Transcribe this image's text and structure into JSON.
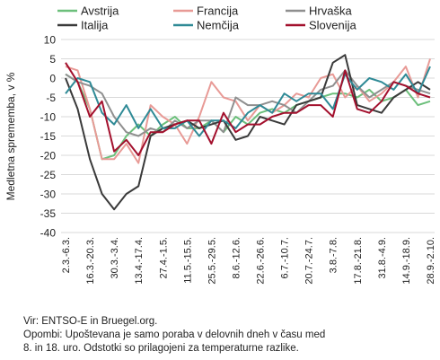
{
  "chart_data": {
    "type": "line",
    "ylabel": "Medletna sprememba, v %",
    "ylim": [
      -40,
      10
    ],
    "yticks": [
      -40,
      -35,
      -30,
      -25,
      -20,
      -15,
      -10,
      -5,
      0,
      5,
      10
    ],
    "grid": "horizontal",
    "legend_position": "top",
    "x_tick_labels": [
      "2.3.-6.3.",
      "16.3.-20.3.",
      "30.3.-3.4.",
      "13.4.-17.4.",
      "27.4.-1.5.",
      "11.5.-15.5.",
      "25.5.-29.5.",
      "8.6.-12.6.",
      "22.6.-26.6.",
      "6.7.-10.7.",
      "20.7.-24.7.",
      "3.8.-7.8.",
      "17.8.-21.8.",
      "31.8.-4.9.",
      "14.9.-18.9.",
      "28.9.-2.10."
    ],
    "x_points": 31,
    "series": [
      {
        "name": "Avstrija",
        "color": "#6cbf7b",
        "values": [
          1,
          -1,
          -8,
          -21,
          -20,
          -15,
          -12,
          -15,
          -12,
          -10,
          -13,
          -13,
          -11,
          -14,
          -10,
          -12,
          -9,
          -8,
          -9,
          -7,
          -6,
          -5,
          -4,
          -4,
          -5,
          -3,
          -6,
          -5,
          -3,
          -7,
          -6
        ]
      },
      {
        "name": "Francija",
        "color": "#e89a96",
        "values": [
          3,
          2,
          -8,
          -21,
          -21,
          -17,
          -22,
          -7,
          -10,
          -12,
          -17,
          -10,
          -1,
          -5,
          -6,
          -11,
          -7,
          -9,
          -7,
          -4,
          -5,
          0,
          1,
          -5,
          -2,
          -6,
          -4,
          -1,
          3,
          -5,
          5
        ]
      },
      {
        "name": "Hrvaška",
        "color": "#8f8f8f",
        "values": [
          1,
          -1,
          -2,
          -4,
          -10,
          -14,
          -15,
          -13,
          -14,
          -11,
          -13,
          -11,
          -11,
          -14,
          -5,
          -7,
          -7,
          -6,
          -7,
          -9,
          -6,
          -3,
          -2,
          2,
          -2,
          -5,
          -3,
          -1,
          -2,
          -3,
          -4
        ]
      },
      {
        "name": "Italija",
        "color": "#3a3a3a",
        "values": [
          0,
          -8,
          -21,
          -30,
          -34,
          -30,
          -28,
          -15,
          -13,
          -12,
          -11,
          -13,
          -12,
          -11,
          -16,
          -15,
          -10,
          -11,
          -12,
          -7,
          -6,
          -5,
          4,
          6,
          -7,
          -8,
          -9,
          -5,
          -3,
          -1,
          -3
        ]
      },
      {
        "name": "Nemčija",
        "color": "#2f8a96",
        "values": [
          -4,
          0,
          -1,
          -9,
          -12,
          -7,
          -13,
          -8,
          -13,
          -13,
          -11,
          -15,
          -11,
          -11,
          -13,
          -9,
          -7,
          -9,
          -4,
          -6,
          -4,
          -4,
          -8,
          1,
          -3,
          0,
          -1,
          -3,
          1,
          -4,
          3
        ]
      },
      {
        "name": "Slovenija",
        "color": "#a3102d",
        "values": [
          4,
          -1,
          -10,
          -6,
          -19,
          -16,
          -20,
          -14,
          -14,
          -12,
          -11,
          -11,
          -17,
          -9,
          -14,
          -12,
          -12,
          -10,
          -9,
          -9,
          -7,
          -7,
          -10,
          2,
          -8,
          -9,
          -6,
          -1,
          -2,
          -4,
          -5
        ]
      }
    ]
  },
  "source_lines": [
    "Vir: ENTSO-E in Bruegel.org.",
    "Opombi: Upoštevana je samo poraba v delovnih dneh v času med",
    "8. in 18. uro. Odstotki so prilagojeni za temperaturne razlike."
  ]
}
